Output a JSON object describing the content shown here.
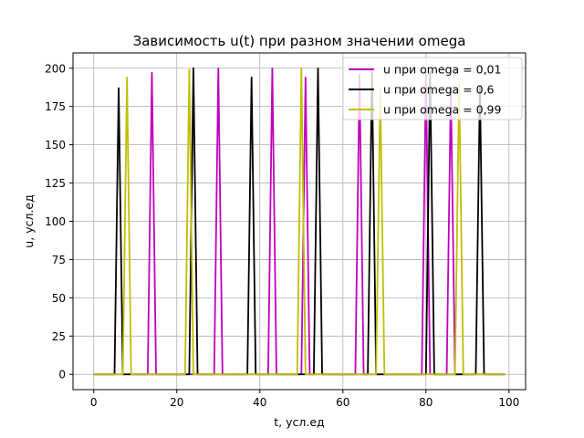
{
  "chart_data": {
    "type": "line",
    "title": "Зависимость u(t) при разном значении omega",
    "xlabel": "t, усл.ед",
    "ylabel": "u, усл.ед",
    "xlim": [
      -5,
      104
    ],
    "ylim": [
      -10,
      210
    ],
    "xticks": [
      0,
      20,
      40,
      60,
      80,
      100
    ],
    "yticks": [
      0,
      25,
      50,
      75,
      100,
      125,
      150,
      175,
      200
    ],
    "grid": true,
    "legend_position": "top-right",
    "series": [
      {
        "name": "u при omega = 0,01",
        "color": "#bf00bf",
        "x": [
          0,
          13,
          14,
          15,
          29,
          30,
          31,
          42,
          43,
          44,
          50,
          51,
          52,
          63,
          64,
          65,
          79,
          80,
          81,
          85,
          86,
          87,
          99
        ],
        "y": [
          0,
          0,
          197,
          0,
          0,
          200,
          0,
          0,
          200,
          0,
          0,
          194,
          0,
          0,
          196,
          0,
          0,
          197,
          0,
          0,
          187,
          0,
          0
        ]
      },
      {
        "name": "u при omega = 0,6",
        "color": "#000000",
        "x": [
          0,
          5,
          6,
          7,
          23,
          24,
          25,
          37,
          38,
          39,
          53,
          54,
          55,
          66,
          67,
          68,
          80,
          81,
          82,
          92,
          93,
          94,
          99
        ],
        "y": [
          0,
          0,
          187,
          0,
          0,
          200,
          0,
          0,
          194,
          0,
          0,
          200,
          0,
          0,
          198,
          0,
          0,
          198,
          0,
          0,
          188,
          0,
          0
        ]
      },
      {
        "name": "u при omega = 0,99",
        "color": "#bfbf00",
        "x": [
          0,
          7,
          8,
          9,
          22,
          23,
          24,
          49,
          50,
          51,
          68,
          69,
          70,
          87,
          88,
          89,
          99
        ],
        "y": [
          0,
          0,
          194,
          0,
          0,
          199,
          0,
          0,
          200,
          0,
          0,
          186,
          0,
          0,
          190,
          0,
          0
        ]
      }
    ]
  }
}
